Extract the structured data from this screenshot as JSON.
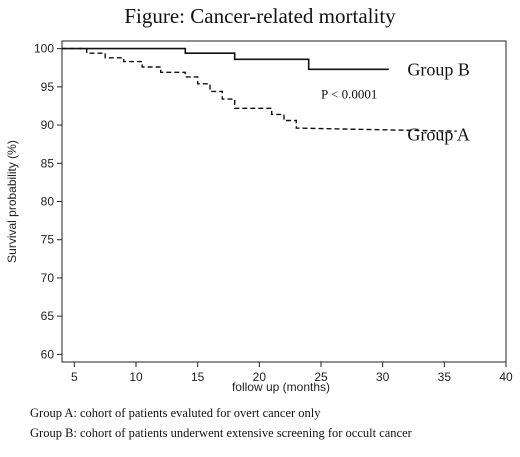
{
  "chart_data": {
    "type": "line",
    "title": "Figure: Cancer-related mortality",
    "xlabel": "follow up (months)",
    "ylabel": "Survival probability (%)",
    "xlim": [
      4,
      40
    ],
    "ylim": [
      59,
      101
    ],
    "xticks": [
      5,
      10,
      15,
      20,
      25,
      30,
      35,
      40
    ],
    "yticks": [
      60,
      65,
      70,
      75,
      80,
      85,
      90,
      95,
      100
    ],
    "grid": false,
    "series": [
      {
        "name": "Group B",
        "style": "solid",
        "color": "#111111",
        "x": [
          4,
          14,
          14,
          18,
          18,
          24,
          24,
          30.5
        ],
        "y": [
          100,
          100,
          99.4,
          99.4,
          98.6,
          98.6,
          97.3,
          97.3
        ]
      },
      {
        "name": "Group A",
        "style": "dashed",
        "color": "#111111",
        "x": [
          4,
          6,
          6,
          7.5,
          7.5,
          9,
          9,
          10.5,
          10.5,
          12,
          12,
          14,
          14,
          15,
          15,
          16,
          16,
          17,
          17,
          18,
          18,
          21,
          21,
          22,
          22,
          23,
          23,
          36
        ],
        "y": [
          100,
          100,
          99.4,
          99.4,
          98.8,
          98.8,
          98.3,
          98.3,
          97.6,
          97.6,
          96.9,
          96.9,
          96.3,
          96.3,
          95.4,
          95.4,
          94.4,
          94.4,
          93.4,
          93.4,
          92.2,
          92.2,
          91.4,
          91.4,
          90.6,
          90.6,
          89.6,
          89.2
        ]
      }
    ],
    "annotations": [
      {
        "text": "Group B",
        "x": 32,
        "y": 96.5
      },
      {
        "text": "P < 0.0001",
        "x": 25,
        "y": 93.5
      },
      {
        "text": "Group A",
        "x": 32,
        "y": 88
      }
    ]
  },
  "notes": [
    "Group A: cohort of patients evaluted for overt cancer only",
    "Group B: cohort of patients underwent extensive screening for occult cancer"
  ]
}
